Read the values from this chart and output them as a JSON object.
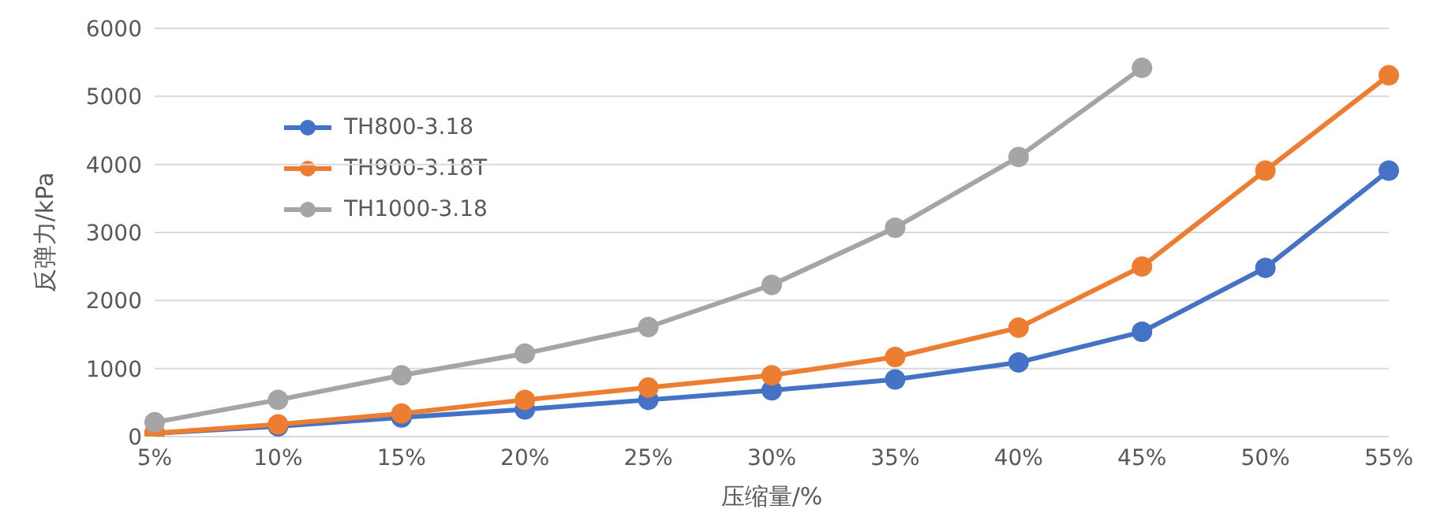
{
  "chart_data": {
    "type": "line",
    "xlabel": "压缩量/%",
    "ylabel": "反弹力/kPa",
    "categories": [
      "5%",
      "10%",
      "15%",
      "20%",
      "25%",
      "30%",
      "35%",
      "40%",
      "45%",
      "50%",
      "55%"
    ],
    "series": [
      {
        "name": "TH800-3.18",
        "color": "#4472c4",
        "values": [
          50,
          150,
          280,
          400,
          540,
          680,
          840,
          1090,
          1540,
          2480,
          3910
        ]
      },
      {
        "name": "TH900-3.18T",
        "color": "#ed7d31",
        "values": [
          50,
          180,
          340,
          540,
          720,
          900,
          1170,
          1600,
          2500,
          3910,
          5310
        ]
      },
      {
        "name": "TH1000-3.18",
        "color": "#a5a5a5",
        "values": [
          210,
          540,
          900,
          1220,
          1610,
          2230,
          3070,
          4110,
          5420,
          null,
          null
        ]
      }
    ],
    "ylim": [
      0,
      6000
    ],
    "yticks": [
      0,
      1000,
      2000,
      3000,
      4000,
      5000,
      6000
    ],
    "grid": "y",
    "legend": "top left",
    "marker": "circle",
    "line_style": "solid"
  }
}
